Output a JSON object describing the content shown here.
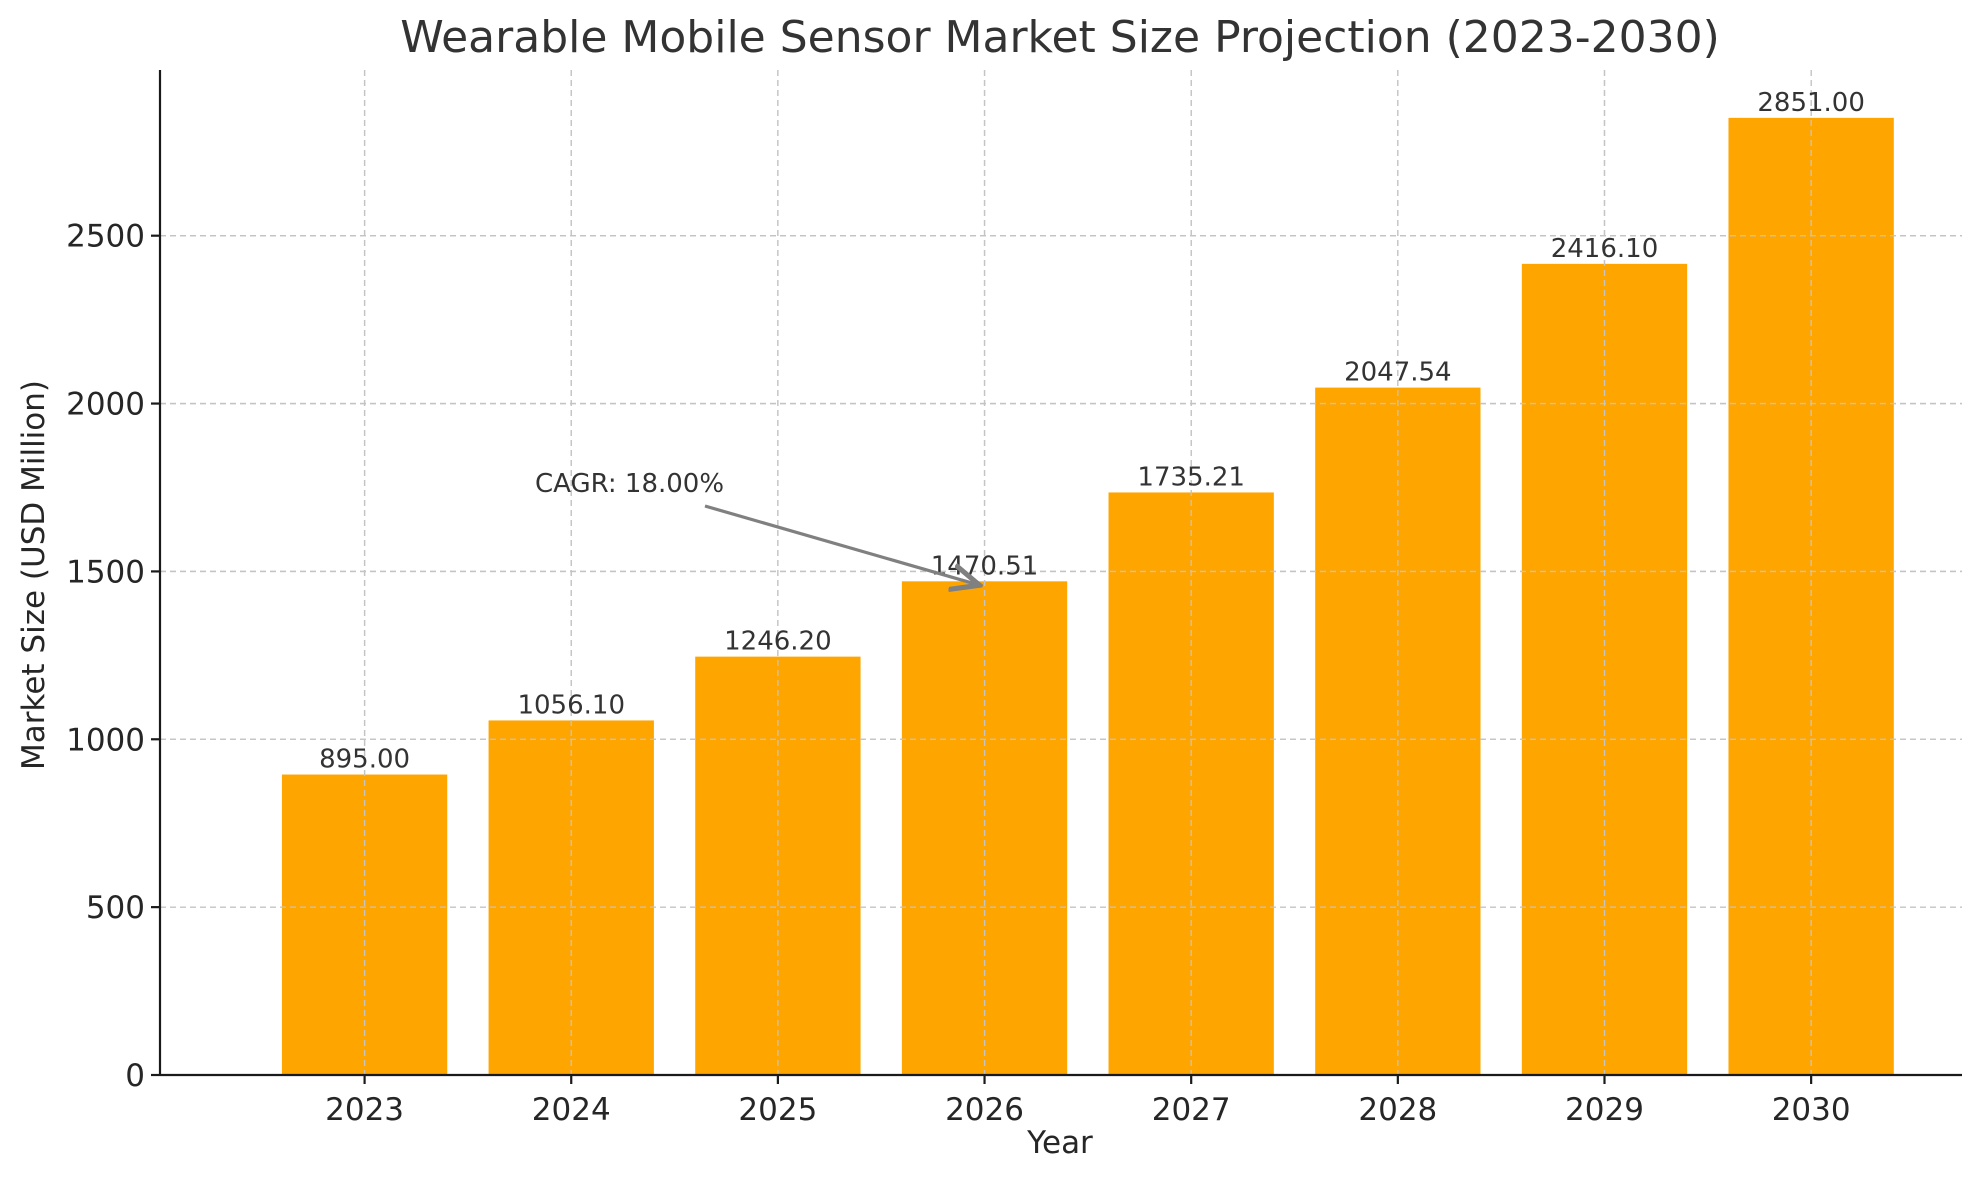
{
  "chart_data": {
    "type": "bar",
    "title": "Wearable Mobile Sensor Market Size Projection (2023-2030)",
    "xlabel": "Year",
    "ylabel": "Market Size (USD Million)",
    "categories": [
      "2023",
      "2024",
      "2025",
      "2026",
      "2027",
      "2028",
      "2029",
      "2030"
    ],
    "values": [
      895.0,
      1056.1,
      1246.2,
      1470.51,
      1735.21,
      2047.54,
      2416.1,
      2851.0
    ],
    "value_labels": [
      "895.00",
      "1056.10",
      "1246.20",
      "1470.51",
      "1735.21",
      "2047.54",
      "2416.10",
      "2851.00"
    ],
    "ylim": [
      0,
      2993.55
    ],
    "yticks": [
      0,
      500,
      1000,
      1500,
      2000,
      2500
    ],
    "ytick_labels": [
      "0",
      "500",
      "1000",
      "1500",
      "2000",
      "2500"
    ],
    "grid": true,
    "bar_color": "#FFA500",
    "annotation": {
      "text": "CAGR: 18.00%",
      "arrow_target_category": "2026",
      "arrow_target_value": 1470.51,
      "arrow_color": "#808080"
    }
  }
}
